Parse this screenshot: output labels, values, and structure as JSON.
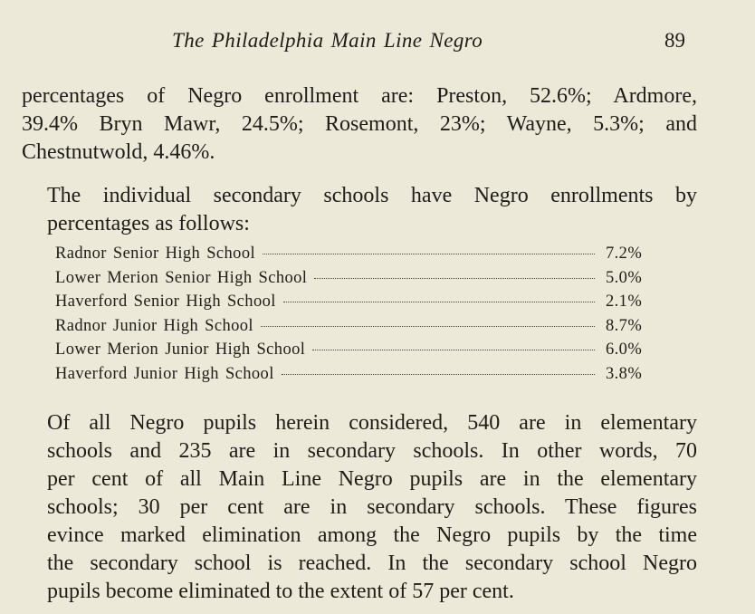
{
  "header": {
    "running_title": "The Philadelphia Main Line Negro",
    "page_number": "89"
  },
  "paragraph_1": {
    "lines": [
      "percentages of Negro enrollment are: Preston, 52.6%; Ardmore,",
      "39.4% Bryn Mawr, 24.5%; Rosemont, 23%; Wayne, 5.3%; and",
      "Chestnutwold, 4.46%."
    ]
  },
  "paragraph_2": {
    "lines": [
      "The individual secondary schools have Negro enrollments by",
      "percentages as follows:"
    ]
  },
  "schools_table": {
    "rows": [
      {
        "school": "Radnor Senior High School",
        "percentage": "7.2%"
      },
      {
        "school": "Lower Merion Senior High School",
        "percentage": "5.0%"
      },
      {
        "school": "Haverford Senior High School",
        "percentage": "2.1%"
      },
      {
        "school": "Radnor Junior High School",
        "percentage": "8.7%"
      },
      {
        "school": "Lower Merion Junior High School",
        "percentage": "6.0%"
      },
      {
        "school": "Haverford Junior High School",
        "percentage": "3.8%"
      }
    ]
  },
  "paragraph_3": {
    "lines": [
      "Of all Negro pupils herein considered, 540 are in elementary",
      "schools and 235 are in secondary schools. In other words, 70",
      "per cent of all Main Line Negro pupils are in the elementary",
      "schools; 30 per cent are in secondary schools. These figures",
      "evince marked elimination among the Negro pupils by the time",
      "the secondary school is reached. In the secondary school Negro",
      "pupils become eliminated to the extent of 57 per cent."
    ]
  }
}
